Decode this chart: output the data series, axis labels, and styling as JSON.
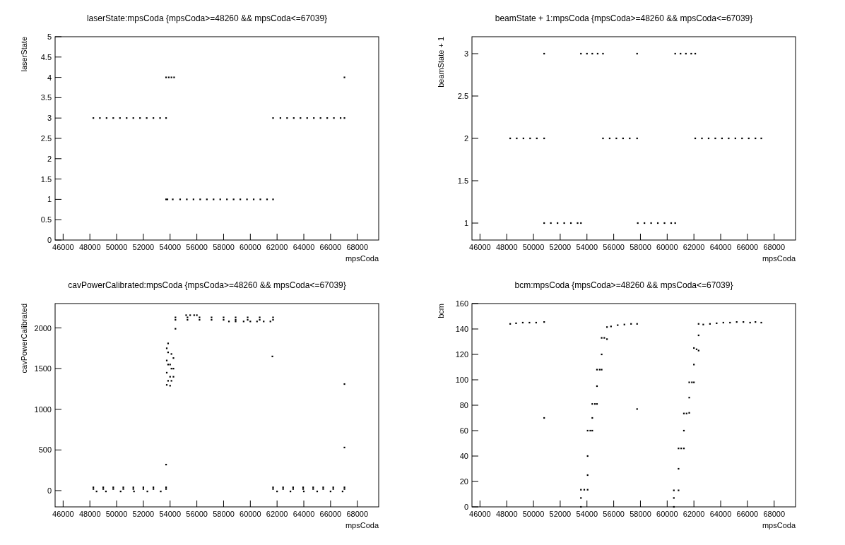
{
  "chart_data": [
    {
      "type": "scatter",
      "title": "laserState:mpsCoda {mpsCoda>=48260 && mpsCoda<=67039}",
      "xlabel": "mpsCoda",
      "ylabel": "laserState",
      "marker": "square",
      "xlim": [
        45400,
        69600
      ],
      "xticks": [
        46000,
        48000,
        50000,
        52000,
        54000,
        56000,
        58000,
        60000,
        62000,
        64000,
        66000,
        68000
      ],
      "ylim": [
        0,
        5
      ],
      "yticks": [
        0,
        0.5,
        1,
        1.5,
        2,
        2.5,
        3,
        3.5,
        4,
        4.5,
        5
      ],
      "series": [
        {
          "color": "#000000",
          "x": [
            48260,
            48750,
            49250,
            49750,
            50250,
            50750,
            51250,
            51750,
            52250,
            52750,
            53250,
            53700,
            53700,
            53800,
            54200,
            54750,
            55250,
            55750,
            56250,
            56750,
            57250,
            57750,
            58250,
            58750,
            59250,
            59750,
            60250,
            60750,
            61250,
            61700,
            53700,
            53900,
            54100,
            54300,
            61700,
            62250,
            62750,
            63250,
            63750,
            64250,
            64750,
            65250,
            65750,
            66250,
            66750,
            67039,
            67039
          ],
          "values": [
            3,
            3,
            3,
            3,
            3,
            3,
            3,
            3,
            3,
            3,
            3,
            3,
            1,
            1,
            1,
            1,
            1,
            1,
            1,
            1,
            1,
            1,
            1,
            1,
            1,
            1,
            1,
            1,
            1,
            1,
            4,
            4,
            4,
            4,
            3,
            3,
            3,
            3,
            3,
            3,
            3,
            3,
            3,
            3,
            3,
            3,
            4
          ]
        }
      ]
    },
    {
      "type": "scatter",
      "title": "beamState + 1:mpsCoda {mpsCoda>=48260 && mpsCoda<=67039}",
      "xlabel": "mpsCoda",
      "ylabel": "beamState + 1",
      "marker": "square",
      "xlim": [
        45400,
        69600
      ],
      "xticks": [
        46000,
        48000,
        50000,
        52000,
        54000,
        56000,
        58000,
        60000,
        62000,
        64000,
        66000,
        68000
      ],
      "ylim": [
        0.8,
        3.2
      ],
      "yticks": [
        1,
        1.5,
        2,
        2.5,
        3
      ],
      "series": [
        {
          "color": "#000000",
          "x": [
            48260,
            48750,
            49250,
            49750,
            50250,
            50800,
            50800,
            50800,
            51300,
            51800,
            52300,
            52800,
            53300,
            53550,
            53550,
            54000,
            54400,
            54800,
            55200,
            55200,
            55700,
            56200,
            56700,
            57200,
            57750,
            57750,
            57800,
            58300,
            58800,
            59300,
            59800,
            60300,
            60600,
            60600,
            61000,
            61400,
            61800,
            62100,
            62100,
            62600,
            63100,
            63600,
            64100,
            64600,
            65100,
            65600,
            66100,
            66600,
            67039
          ],
          "values": [
            2,
            2,
            2,
            2,
            2,
            2,
            3,
            1,
            1,
            1,
            1,
            1,
            1,
            1,
            3,
            3,
            3,
            3,
            3,
            2,
            2,
            2,
            2,
            2,
            2,
            3,
            1,
            1,
            1,
            1,
            1,
            1,
            1,
            3,
            3,
            3,
            3,
            3,
            2,
            2,
            2,
            2,
            2,
            2,
            2,
            2,
            2,
            2,
            2
          ]
        }
      ]
    },
    {
      "type": "scatter",
      "title": "cavPowerCalibrated:mpsCoda {mpsCoda>=48260 && mpsCoda<=67039}",
      "xlabel": "mpsCoda",
      "ylabel": "cavPowerCalibrated",
      "marker": "square",
      "xlim": [
        45400,
        69600
      ],
      "xticks": [
        46000,
        48000,
        50000,
        52000,
        54000,
        56000,
        58000,
        60000,
        62000,
        64000,
        66000,
        68000
      ],
      "ylim": [
        -200,
        2300
      ],
      "yticks": [
        0,
        500,
        1000,
        1500,
        2000
      ],
      "series": [
        {
          "color": "#000000",
          "x": [
            48260,
            49000,
            49750,
            50500,
            51250,
            52000,
            52750,
            53700,
            48260,
            49000,
            49750,
            50500,
            51250,
            52000,
            52750,
            53700,
            48500,
            49200,
            50300,
            51300,
            52300,
            53300,
            53700,
            53750,
            53750,
            53750,
            53750,
            53850,
            53850,
            53850,
            53850,
            54000,
            54000,
            54000,
            54100,
            54100,
            54100,
            54250,
            54250,
            54250,
            54400,
            54400,
            55300,
            56200,
            57100,
            58000,
            58900,
            59800,
            60700,
            61700,
            54400,
            55300,
            56200,
            57100,
            58000,
            58900,
            59800,
            60700,
            61700,
            58400,
            58900,
            59500,
            60000,
            60500,
            61000,
            61500,
            55200,
            55500,
            55800,
            56000,
            61650,
            61700,
            62450,
            63200,
            63950,
            64700,
            65450,
            66200,
            67039,
            61700,
            62450,
            63200,
            63950,
            64700,
            65450,
            66200,
            67039,
            62000,
            63000,
            64000,
            65000,
            66000,
            66900,
            67039,
            67039
          ],
          "values": [
            40,
            40,
            40,
            40,
            40,
            40,
            40,
            40,
            20,
            20,
            20,
            20,
            20,
            20,
            20,
            20,
            -10,
            -10,
            -10,
            -10,
            -10,
            -10,
            320,
            1300,
            1450,
            1600,
            1750,
            1350,
            1550,
            1700,
            1810,
            1290,
            1400,
            1550,
            1350,
            1500,
            1680,
            1400,
            1500,
            1630,
            1990,
            2130,
            2130,
            2130,
            2130,
            2130,
            2130,
            2130,
            2130,
            2130,
            2100,
            2100,
            2100,
            2100,
            2100,
            2100,
            2100,
            2100,
            2100,
            2080,
            2080,
            2080,
            2080,
            2080,
            2080,
            2080,
            2157,
            2157,
            2157,
            2157,
            1650,
            40,
            40,
            40,
            40,
            40,
            40,
            40,
            40,
            20,
            20,
            20,
            20,
            20,
            20,
            20,
            20,
            -10,
            -10,
            -10,
            -10,
            -10,
            -10,
            1310,
            530
          ]
        }
      ]
    },
    {
      "type": "scatter",
      "title": "bcm:mpsCoda {mpsCoda>=48260 && mpsCoda<=67039}",
      "xlabel": "mpsCoda",
      "ylabel": "bcm",
      "marker": "square",
      "xlim": [
        45400,
        69600
      ],
      "xticks": [
        46000,
        48000,
        50000,
        52000,
        54000,
        56000,
        58000,
        60000,
        62000,
        64000,
        66000,
        68000
      ],
      "ylim": [
        0,
        160
      ],
      "yticks": [
        0,
        20,
        40,
        60,
        80,
        100,
        120,
        140,
        160
      ],
      "series": [
        {
          "color": "#000000",
          "x": [
            48260,
            48700,
            49200,
            49700,
            50200,
            50800,
            50800,
            53550,
            53550,
            53550,
            53800,
            54050,
            54050,
            54050,
            54050,
            54250,
            54400,
            54400,
            54400,
            54600,
            54750,
            54750,
            54750,
            54950,
            55100,
            55100,
            55100,
            55300,
            55500,
            55500,
            55800,
            56300,
            56800,
            57300,
            57750,
            57750,
            60500,
            60500,
            60500,
            60850,
            60850,
            60850,
            61050,
            61250,
            61250,
            61250,
            61450,
            61650,
            61650,
            61650,
            61850,
            62000,
            62000,
            62000,
            62200,
            62350,
            62350,
            62350,
            62700,
            63200,
            63700,
            64200,
            64700,
            65200,
            65700,
            66200,
            66600,
            67039
          ],
          "values": [
            144,
            144.5,
            145,
            145,
            145,
            145.5,
            70,
            0,
            7,
            13.5,
            13.5,
            13.5,
            25,
            40,
            60,
            60,
            60,
            70,
            81,
            81,
            81,
            95,
            108,
            108,
            108,
            120,
            133,
            133,
            132,
            141.5,
            142,
            143,
            143.5,
            144,
            144,
            77,
            0,
            7,
            13,
            13,
            30,
            46,
            46,
            46,
            60,
            73.5,
            73.5,
            74,
            86,
            98,
            98,
            98,
            112,
            125,
            124,
            123,
            135,
            144,
            143.5,
            144,
            144.5,
            145,
            145,
            145.5,
            145.5,
            145,
            145.5,
            145
          ]
        }
      ]
    }
  ]
}
